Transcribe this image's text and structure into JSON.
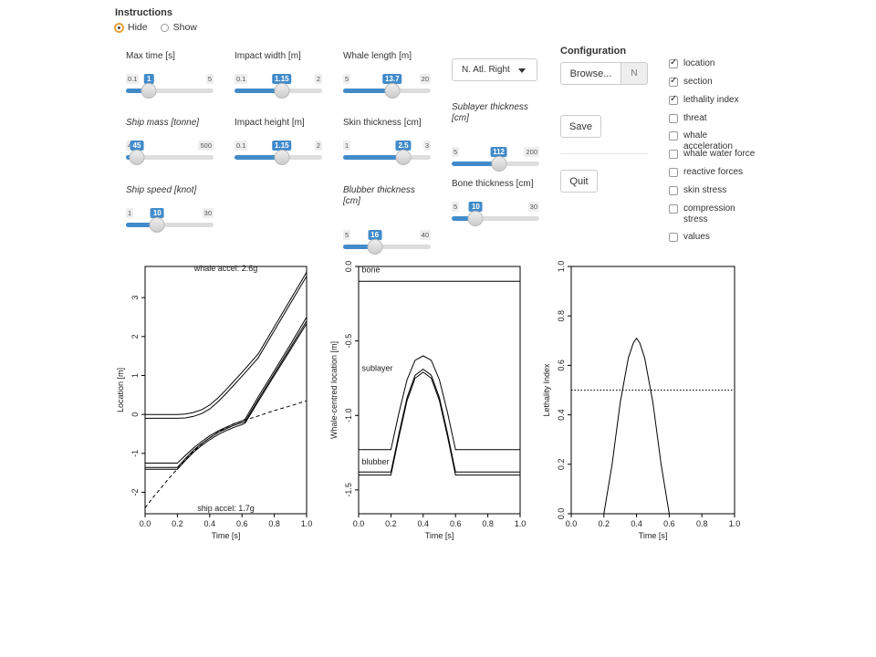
{
  "instructions": {
    "title": "Instructions",
    "options": [
      "Hide",
      "Show"
    ],
    "selected": "Hide"
  },
  "sliders": {
    "max_time": {
      "label": "Max time [s]",
      "min": "0.1",
      "max": "5",
      "value": "1",
      "fraction": 0.184
    },
    "impact_width": {
      "label": "Impact width [m]",
      "min": "0.1",
      "max": "2",
      "value": "1.15",
      "fraction": 0.553
    },
    "whale_length": {
      "label": "Whale length [m]",
      "min": "5",
      "max": "20",
      "value": "13.7",
      "fraction": 0.58
    },
    "ship_mass": {
      "label": "Ship mass [tonne]",
      "min": "45",
      "max": "500",
      "value": "45",
      "fraction": 0.0
    },
    "impact_height": {
      "label": "Impact height [m]",
      "min": "0.1",
      "max": "2",
      "value": "1.15",
      "fraction": 0.553
    },
    "skin_thickness": {
      "label": "Skin thickness [cm]",
      "min": "1",
      "max": "3",
      "value": "2.5",
      "fraction": 0.75
    },
    "sublayer_thickness": {
      "label": "Sublayer thickness [cm]",
      "min": "5",
      "max": "200",
      "value": "112",
      "fraction": 0.549
    },
    "ship_speed": {
      "label": "Ship speed [knot]",
      "min": "1",
      "max": "30",
      "value": "10",
      "fraction": 0.31
    },
    "blubber_thickness": {
      "label": "Blubber thickness [cm]",
      "min": "5",
      "max": "40",
      "value": "16",
      "fraction": 0.314
    },
    "bone_thickness": {
      "label": "Bone thickness [cm]",
      "min": "5",
      "max": "30",
      "value": "10",
      "fraction": 0.2
    }
  },
  "species_select": {
    "value": "N. Atl. Right"
  },
  "configuration": {
    "title": "Configuration",
    "browse_label": "Browse...",
    "file_field": "N",
    "save_label": "Save",
    "quit_label": "Quit"
  },
  "checkboxes": [
    {
      "label": "location",
      "checked": true
    },
    {
      "label": "section",
      "checked": true
    },
    {
      "label": "lethality index",
      "checked": true
    },
    {
      "label": "threat",
      "checked": false
    },
    {
      "label": "whale acceleration",
      "checked": false
    },
    {
      "label": "whale water force",
      "checked": false
    },
    {
      "label": "reactive forces",
      "checked": false
    },
    {
      "label": "skin stress",
      "checked": false
    },
    {
      "label": "compression stress",
      "checked": false
    },
    {
      "label": "values",
      "checked": false
    }
  ],
  "chart_data": [
    {
      "type": "line",
      "xlabel": "Time [s]",
      "ylabel": "Location [m]",
      "xlim": [
        0,
        1
      ],
      "ylim": [
        -2.55,
        3.8
      ],
      "xticks": [
        "0.0",
        "0.2",
        "0.4",
        "0.6",
        "0.8",
        "1.0"
      ],
      "yticks": [
        "-2",
        "-1",
        "0",
        "1",
        "2",
        "3"
      ],
      "annotations": [
        "whale accel: 2.6g",
        "ship accel: 1.7g"
      ],
      "series": [
        {
          "style": "solid",
          "x": [
            0,
            0.2,
            0.25,
            0.3,
            0.35,
            0.4,
            0.45,
            0.5,
            0.6,
            0.7,
            0.8,
            0.9,
            1.0
          ],
          "y": [
            0.0,
            0.0,
            0.01,
            0.05,
            0.12,
            0.24,
            0.42,
            0.63,
            1.08,
            1.55,
            2.25,
            2.95,
            3.65
          ]
        },
        {
          "style": "solid",
          "x": [
            0,
            0.2,
            0.25,
            0.3,
            0.35,
            0.4,
            0.45,
            0.5,
            0.6,
            0.7,
            0.8,
            0.9,
            1.0
          ],
          "y": [
            -0.1,
            -0.1,
            -0.09,
            -0.05,
            0.02,
            0.14,
            0.32,
            0.53,
            0.98,
            1.45,
            2.15,
            2.85,
            3.55
          ]
        },
        {
          "style": "solid",
          "x": [
            0,
            0.2,
            0.25,
            0.3,
            0.35,
            0.4,
            0.45,
            0.5,
            0.55,
            0.6,
            0.62,
            0.7,
            0.8,
            0.9,
            1.0
          ],
          "y": [
            -1.25,
            -1.25,
            -1.05,
            -0.86,
            -0.7,
            -0.55,
            -0.43,
            -0.33,
            -0.24,
            -0.17,
            -0.12,
            0.45,
            1.12,
            1.8,
            2.5
          ]
        },
        {
          "style": "solid",
          "x": [
            0,
            0.2,
            0.25,
            0.3,
            0.35,
            0.4,
            0.45,
            0.5,
            0.55,
            0.6,
            0.62,
            0.7,
            0.8,
            0.9,
            1.0
          ],
          "y": [
            -1.36,
            -1.36,
            -1.13,
            -0.92,
            -0.75,
            -0.6,
            -0.47,
            -0.37,
            -0.28,
            -0.21,
            -0.18,
            0.38,
            1.05,
            1.72,
            2.4
          ]
        },
        {
          "style": "solid",
          "x": [
            0,
            0.2,
            0.25,
            0.3,
            0.35,
            0.4,
            0.45,
            0.5,
            0.55,
            0.6,
            0.62,
            0.7,
            0.8,
            0.9,
            1.0
          ],
          "y": [
            -1.41,
            -1.41,
            -1.18,
            -0.97,
            -0.8,
            -0.65,
            -0.52,
            -0.42,
            -0.33,
            -0.26,
            -0.22,
            0.33,
            1.0,
            1.66,
            2.33
          ]
        },
        {
          "style": "dashed",
          "x": [
            0,
            0.05,
            0.1,
            0.15,
            0.2,
            0.25,
            0.3,
            0.35,
            0.4,
            0.45,
            0.5,
            0.55,
            0.6,
            0.7,
            0.8,
            0.9,
            1.0
          ],
          "y": [
            -2.4,
            -2.13,
            -1.88,
            -1.63,
            -1.4,
            -1.17,
            -0.95,
            -0.76,
            -0.6,
            -0.46,
            -0.34,
            -0.24,
            -0.17,
            -0.04,
            0.1,
            0.22,
            0.35
          ]
        }
      ]
    },
    {
      "type": "line",
      "xlabel": "Time [s]",
      "ylabel": "Whale-centred location [m]",
      "xlim": [
        0,
        1
      ],
      "ylim": [
        -1.66,
        0
      ],
      "xticks": [
        "0.0",
        "0.2",
        "0.4",
        "0.6",
        "0.8",
        "1.0"
      ],
      "yticks": [
        "0.0",
        "-0.5",
        "-1.0",
        "-1.5"
      ],
      "annotations": [
        "bone",
        "sublayer",
        "blubber"
      ],
      "series": [
        {
          "style": "solid",
          "x": [
            0,
            1
          ],
          "y": [
            -0.1,
            -0.1
          ]
        },
        {
          "style": "solid",
          "x": [
            0,
            0.2,
            0.25,
            0.3,
            0.35,
            0.4,
            0.45,
            0.5,
            0.55,
            0.6,
            1.0
          ],
          "y": [
            -1.23,
            -1.23,
            -0.98,
            -0.76,
            -0.63,
            -0.6,
            -0.63,
            -0.76,
            -0.98,
            -1.23,
            -1.23
          ]
        },
        {
          "style": "solid",
          "x": [
            0,
            0.2,
            0.25,
            0.3,
            0.35,
            0.4,
            0.45,
            0.5,
            0.55,
            0.6,
            1.0
          ],
          "y": [
            -1.38,
            -1.38,
            -1.12,
            -0.88,
            -0.73,
            -0.69,
            -0.73,
            -0.88,
            -1.12,
            -1.38,
            -1.38
          ]
        },
        {
          "style": "solid",
          "x": [
            0,
            0.2,
            0.25,
            0.3,
            0.35,
            0.4,
            0.45,
            0.5,
            0.55,
            0.6,
            1.0
          ],
          "y": [
            -1.4,
            -1.4,
            -1.14,
            -0.9,
            -0.75,
            -0.71,
            -0.75,
            -0.9,
            -1.14,
            -1.4,
            -1.4
          ]
        }
      ]
    },
    {
      "type": "line",
      "xlabel": "Time [s]",
      "ylabel": "Lethality Index",
      "xlim": [
        0,
        1
      ],
      "ylim": [
        0,
        1
      ],
      "xticks": [
        "0.0",
        "0.2",
        "0.4",
        "0.6",
        "0.8",
        "1.0"
      ],
      "yticks": [
        "0.0",
        "0.2",
        "0.4",
        "0.6",
        "0.8",
        "1.0"
      ],
      "threshold": 0.5,
      "series": [
        {
          "style": "solid",
          "x": [
            0.2,
            0.25,
            0.3,
            0.35,
            0.38,
            0.4,
            0.42,
            0.45,
            0.5,
            0.55,
            0.6
          ],
          "y": [
            0.0,
            0.2,
            0.45,
            0.63,
            0.69,
            0.71,
            0.69,
            0.63,
            0.45,
            0.2,
            0.0
          ]
        }
      ]
    }
  ]
}
